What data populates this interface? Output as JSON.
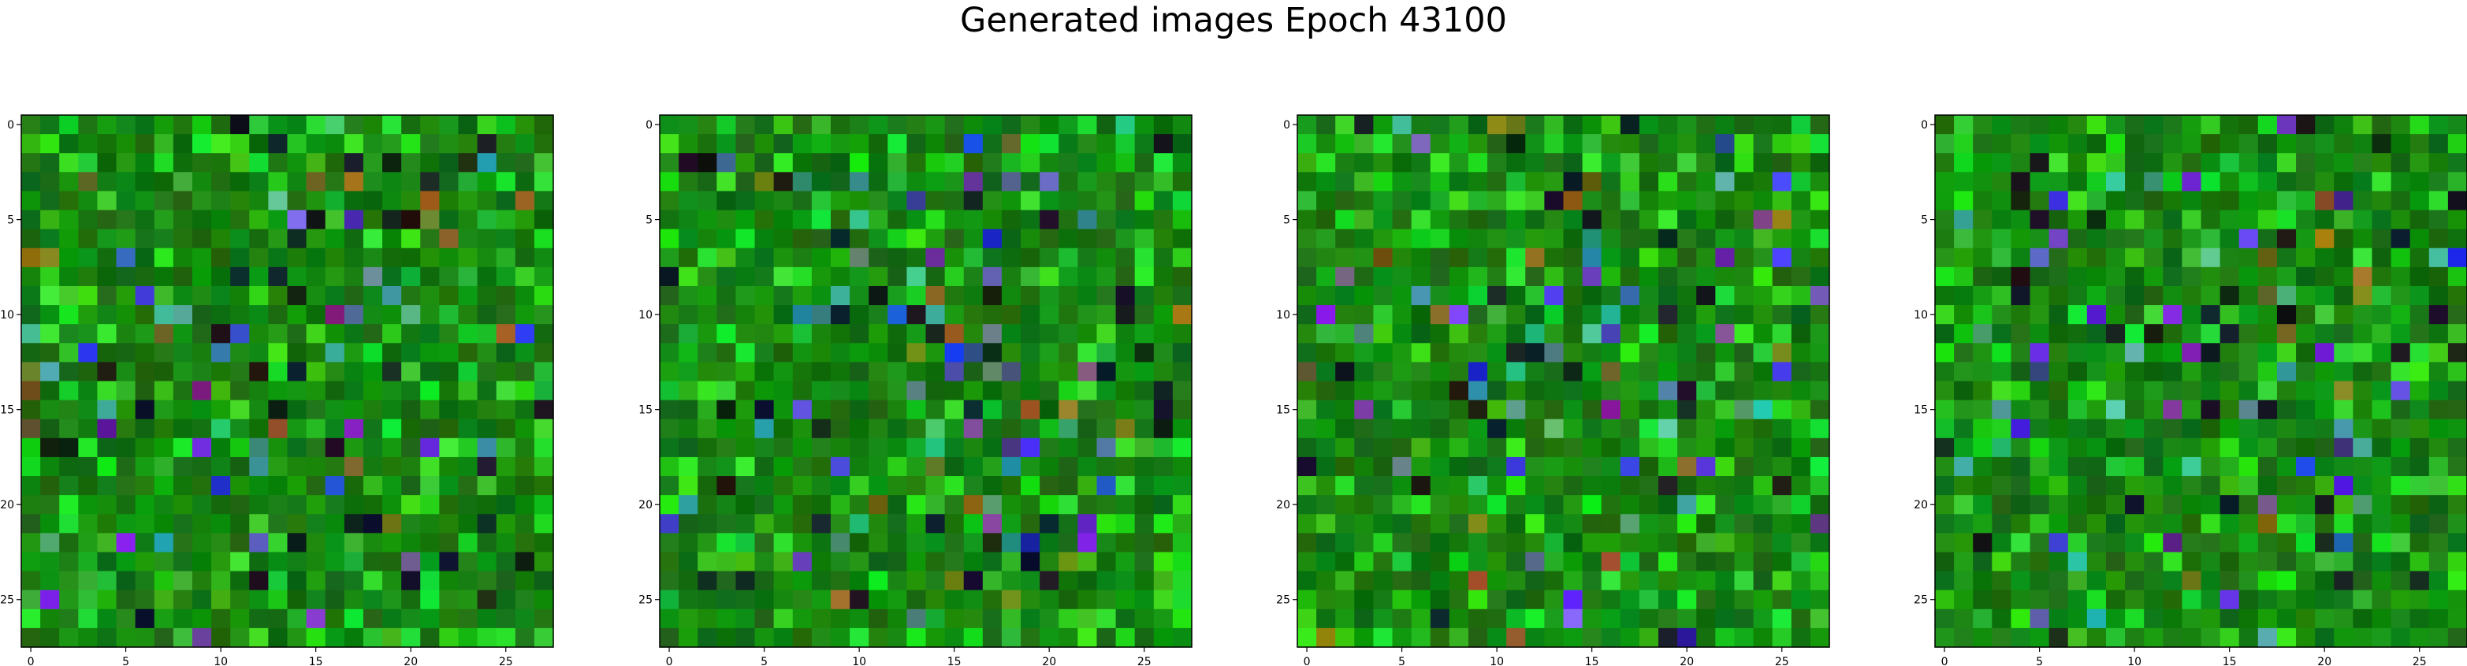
{
  "figure": {
    "suptitle": "Generated images Epoch 43100"
  },
  "chart_data": [
    {
      "type": "heatmap",
      "panel": 1,
      "x_ticks": [
        0,
        5,
        10,
        15,
        20,
        25
      ],
      "y_ticks": [
        0,
        5,
        10,
        15,
        20,
        25
      ],
      "xlim": [
        -0.5,
        27.5
      ],
      "ylim": [
        27.5,
        -0.5
      ],
      "grid_size": [
        28,
        28
      ],
      "colormap": "rgb-green-dominant"
    },
    {
      "type": "heatmap",
      "panel": 2,
      "x_ticks": [
        0,
        5,
        10,
        15,
        20,
        25
      ],
      "y_ticks": [
        0,
        5,
        10,
        15,
        20,
        25
      ],
      "xlim": [
        -0.5,
        27.5
      ],
      "ylim": [
        27.5,
        -0.5
      ],
      "grid_size": [
        28,
        28
      ],
      "colormap": "rgb-green-dominant"
    },
    {
      "type": "heatmap",
      "panel": 3,
      "x_ticks": [
        0,
        5,
        10,
        15,
        20,
        25
      ],
      "y_ticks": [
        0,
        5,
        10,
        15,
        20,
        25
      ],
      "xlim": [
        -0.5,
        27.5
      ],
      "ylim": [
        27.5,
        -0.5
      ],
      "grid_size": [
        28,
        28
      ],
      "colormap": "rgb-green-dominant"
    },
    {
      "type": "heatmap",
      "panel": 4,
      "x_ticks": [
        0,
        5,
        10,
        15,
        20,
        25
      ],
      "y_ticks": [
        0,
        5,
        10,
        15,
        20,
        25
      ],
      "xlim": [
        -0.5,
        27.5
      ],
      "ylim": [
        27.5,
        -0.5
      ],
      "grid_size": [
        28,
        28
      ],
      "colormap": "rgb-green-dominant"
    }
  ]
}
